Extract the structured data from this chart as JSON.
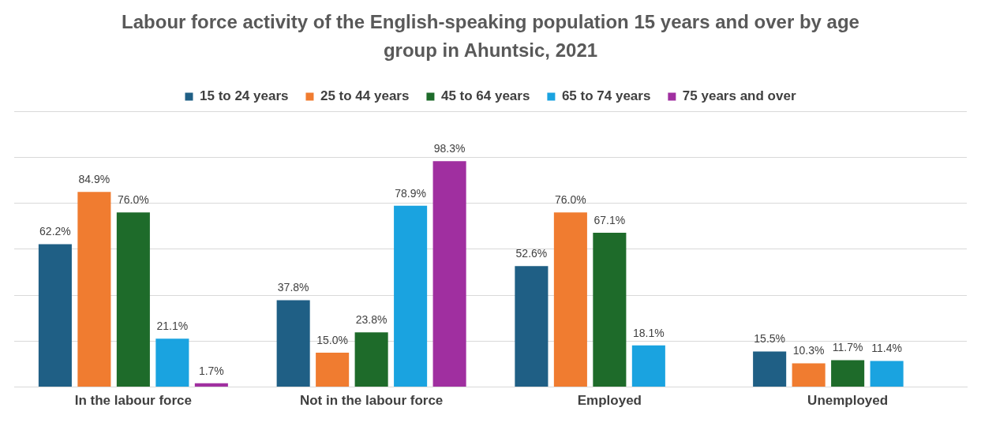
{
  "chart_data": {
    "type": "bar",
    "title": "Labour force activity of the English-speaking population 15 years and over by age group in Ahuntsic, 2021",
    "categories": [
      "In the labour force",
      "Not in the labour force",
      "Employed",
      "Unemployed"
    ],
    "series": [
      {
        "name": "15 to 24 years",
        "color": "#1f5f85",
        "values": [
          62.2,
          37.8,
          52.6,
          15.5
        ],
        "value_labels": [
          "62.2%",
          "37.8%",
          "52.6%",
          "15.5%"
        ]
      },
      {
        "name": "25 to 44 years",
        "color": "#f07c30",
        "values": [
          84.9,
          15.0,
          76.0,
          10.3
        ],
        "value_labels": [
          "84.9%",
          "15.0%",
          "76.0%",
          "10.3%"
        ]
      },
      {
        "name": "45 to 64 years",
        "color": "#1e6b2a",
        "values": [
          76.0,
          23.8,
          67.1,
          11.7
        ],
        "value_labels": [
          "76.0%",
          "23.8%",
          "67.1%",
          "11.7%"
        ]
      },
      {
        "name": "65 to 74 years",
        "color": "#1aa3e0",
        "values": [
          21.1,
          78.9,
          18.1,
          11.4
        ],
        "value_labels": [
          "21.1%",
          "78.9%",
          "18.1%",
          "11.4%"
        ]
      },
      {
        "name": "75 years and over",
        "color": "#a02fa0",
        "values": [
          1.7,
          98.3,
          null,
          null
        ],
        "value_labels": [
          "1.7%",
          "98.3%",
          null,
          null
        ]
      }
    ],
    "ylim": [
      0,
      120
    ],
    "yticks": [
      0,
      20,
      40,
      60,
      80,
      100,
      120
    ],
    "grid": "y",
    "legend": "top",
    "tick_labels": "x"
  }
}
